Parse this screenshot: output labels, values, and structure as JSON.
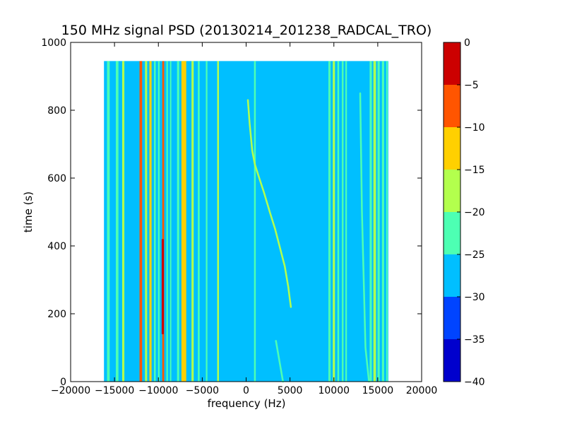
{
  "chart_data": {
    "type": "heatmap",
    "title": "150 MHz signal PSD (20130214_201238_RADCAL_TRO)",
    "xlabel": "frequency (Hz)",
    "ylabel": "time (s)",
    "xlim": [
      -20000,
      20000
    ],
    "ylim": [
      0,
      1000
    ],
    "x_ticks": [
      -20000,
      -15000,
      -10000,
      -5000,
      0,
      5000,
      10000,
      15000,
      20000
    ],
    "x_tick_labels": [
      "−20000",
      "−15000",
      "−10000",
      "−5000",
      "0",
      "5000",
      "10000",
      "15000",
      "20000"
    ],
    "y_ticks": [
      0,
      200,
      400,
      600,
      800,
      1000
    ],
    "y_tick_labels": [
      "0",
      "200",
      "400",
      "600",
      "800",
      "1000"
    ],
    "data_extent": {
      "freq_min": -16200,
      "freq_max": 16200,
      "time_min": 0,
      "time_max": 945
    },
    "background_level_db": -27.5,
    "colorbar": {
      "levels": [
        -40,
        -35,
        -30,
        -25,
        -20,
        -15,
        -10,
        -5,
        0
      ],
      "tick_labels": [
        "−40",
        "−35",
        "−30",
        "−25",
        "−20",
        "−15",
        "−10",
        "−5",
        "0"
      ],
      "colors": [
        "#0000cd",
        "#0044ff",
        "#00bfff",
        "#4dffb3",
        "#b3ff4d",
        "#ffd000",
        "#ff5500",
        "#cc0000"
      ]
    },
    "constant_tones": [
      {
        "freq": -15700,
        "width": 300,
        "level_db": -22
      },
      {
        "freq": -14700,
        "width": 300,
        "level_db": -22
      },
      {
        "freq": -14000,
        "width": 250,
        "level_db": -17
      },
      {
        "freq": -12000,
        "width": 300,
        "level_db": -7
      },
      {
        "freq": -11400,
        "width": 250,
        "level_db": -17
      },
      {
        "freq": -10900,
        "width": 250,
        "level_db": -12
      },
      {
        "freq": -10400,
        "width": 200,
        "level_db": -22
      },
      {
        "freq": -9950,
        "width": 180,
        "level_db": -22
      },
      {
        "freq": -9450,
        "width": 220,
        "level_db": -7
      },
      {
        "freq": -9000,
        "width": 180,
        "level_db": -22
      },
      {
        "freq": -8600,
        "width": 150,
        "level_db": -22
      },
      {
        "freq": -7750,
        "width": 250,
        "level_db": -22
      },
      {
        "freq": -7100,
        "width": 550,
        "level_db": -12
      },
      {
        "freq": -6100,
        "width": 250,
        "level_db": -17
      },
      {
        "freq": -5400,
        "width": 200,
        "level_db": -22
      },
      {
        "freq": -4500,
        "width": 180,
        "level_db": -22
      },
      {
        "freq": -3200,
        "width": 200,
        "level_db": -17
      },
      {
        "freq": 1000,
        "width": 200,
        "level_db": -22
      },
      {
        "freq": 9500,
        "width": 250,
        "level_db": -22
      },
      {
        "freq": 10000,
        "width": 250,
        "level_db": -17
      },
      {
        "freq": 10500,
        "width": 200,
        "level_db": -22
      },
      {
        "freq": 11000,
        "width": 200,
        "level_db": -22
      },
      {
        "freq": 11400,
        "width": 180,
        "level_db": -22
      },
      {
        "freq": 14200,
        "width": 250,
        "level_db": -22
      },
      {
        "freq": 14650,
        "width": 300,
        "level_db": -17
      },
      {
        "freq": 15100,
        "width": 250,
        "level_db": -22
      },
      {
        "freq": 15600,
        "width": 250,
        "level_db": -22
      },
      {
        "freq": 16050,
        "width": 180,
        "level_db": -22
      }
    ],
    "short_tones": [
      {
        "freq": -9500,
        "t_start": 140,
        "t_end": 420,
        "width": 250,
        "level_db": -2
      }
    ],
    "drifting_signals": [
      {
        "level_db": -17,
        "points": [
          [
            200,
            830
          ],
          [
            400,
            760
          ],
          [
            700,
            680
          ],
          [
            1000,
            640
          ],
          [
            1500,
            600
          ],
          [
            2000,
            560
          ],
          [
            2700,
            500
          ],
          [
            3300,
            450
          ],
          [
            3900,
            390
          ],
          [
            4400,
            340
          ],
          [
            4800,
            280
          ],
          [
            5000,
            240
          ],
          [
            5100,
            220
          ]
        ]
      },
      {
        "level_db": -22,
        "points": [
          [
            3400,
            120
          ],
          [
            3800,
            60
          ],
          [
            4200,
            0
          ]
        ]
      },
      {
        "level_db": -22,
        "points": [
          [
            13000,
            850
          ],
          [
            13200,
            500
          ],
          [
            13600,
            100
          ],
          [
            14000,
            0
          ]
        ]
      }
    ]
  }
}
